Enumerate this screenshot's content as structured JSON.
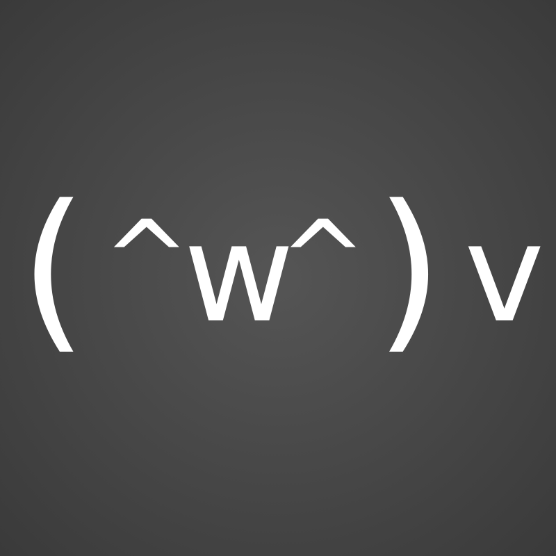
{
  "emoticon": {
    "text": "(^w^)v",
    "glyphs": {
      "open_paren": "(",
      "left_eye": "^",
      "mouth": "w",
      "right_eye": "^",
      "close_paren": ")",
      "peace_hand": "v"
    }
  },
  "colors": {
    "text": "#ffffff",
    "background_center": "#555555",
    "background_edge": "#3a3a3a"
  }
}
